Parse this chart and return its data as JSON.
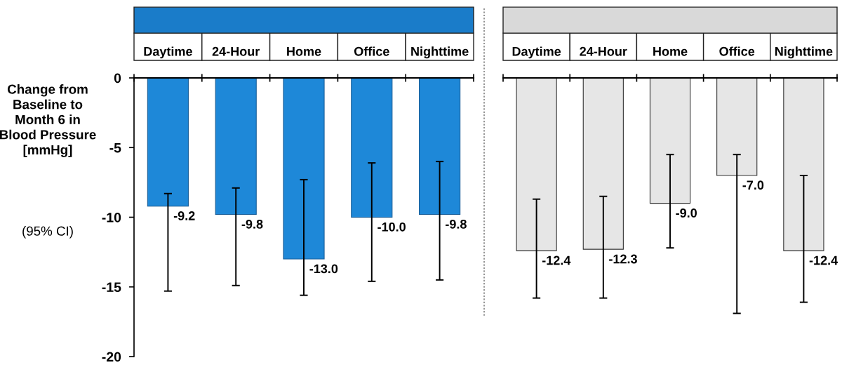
{
  "chart_data": [
    {
      "type": "bar",
      "ylabel": "Change from Baseline to Month 6 in Blood Pressure [mmHg]",
      "annotations": [
        "(95% CI)"
      ],
      "categories": [
        "Daytime",
        "24-Hour",
        "Home",
        "Office",
        "Nighttime"
      ],
      "ylim": [
        -20,
        0
      ],
      "yticks": [
        0,
        -5,
        -10,
        -15,
        -20
      ],
      "data_labels": true,
      "grid": false,
      "legend": false,
      "series": [
        {
          "color": "#1e88d8",
          "values": [
            -9.2,
            -9.8,
            -13.0,
            -10.0,
            -9.8
          ],
          "value_labels": [
            "-9.2",
            "-9.8",
            "-13.0",
            "-10.0",
            "-9.8"
          ],
          "errors": [
            [
              -15.3,
              -8.3
            ],
            [
              -14.9,
              -7.9
            ],
            [
              -15.6,
              -7.3
            ],
            [
              -14.6,
              -6.1
            ],
            [
              -14.5,
              -6.0
            ]
          ]
        }
      ]
    },
    {
      "type": "bar",
      "categories": [
        "Daytime",
        "24-Hour",
        "Home",
        "Office",
        "Nighttime"
      ],
      "ylim": [
        -20,
        0
      ],
      "yticks": [
        0,
        -5,
        -10,
        -15,
        -20
      ],
      "tick_labels": "x",
      "data_labels": true,
      "grid": false,
      "legend": false,
      "series": [
        {
          "color": "#e6e6e6",
          "values": [
            -12.4,
            -12.3,
            -9.0,
            -7.0,
            -12.4
          ],
          "value_labels": [
            "-12.4",
            "-12.3",
            "-9.0",
            "-7.0",
            "-12.4"
          ],
          "errors": [
            [
              -15.8,
              -8.7
            ],
            [
              -15.8,
              -8.5
            ],
            [
              -12.2,
              -5.5
            ],
            [
              -16.9,
              -5.5
            ],
            [
              -16.1,
              -7.0
            ]
          ]
        }
      ]
    }
  ]
}
